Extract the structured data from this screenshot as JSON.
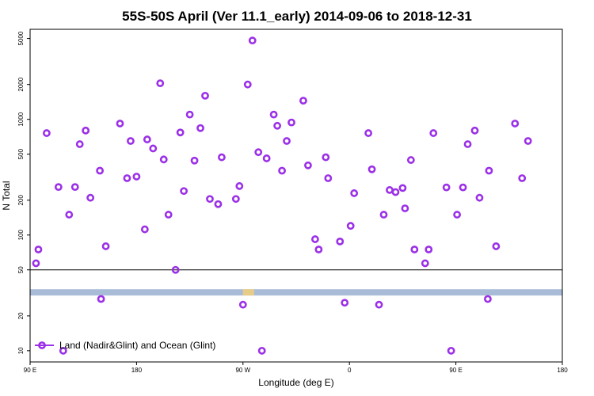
{
  "chart_data": {
    "type": "scatter",
    "title": "55S-50S April (Ver 11.1_early)   2014-09-06 to 2018-12-31",
    "xlabel": "Longitude (deg E)",
    "ylabel": "N Total",
    "y_scale": "log",
    "x_ticks": [
      {
        "value": 90,
        "label": "90 E"
      },
      {
        "value": 180,
        "label": "180"
      },
      {
        "value": 270,
        "label": "90 W"
      },
      {
        "value": 360,
        "label": "0"
      },
      {
        "value": 450,
        "label": "90 E"
      },
      {
        "value": 540,
        "label": "180"
      }
    ],
    "y_ticks": [
      10,
      20,
      50,
      100,
      200,
      500,
      1000,
      2000,
      5000
    ],
    "xlim": [
      90,
      540
    ],
    "ylim": [
      8,
      6000
    ],
    "grid": false,
    "legend_position": "bottom-left",
    "threshold_line": 50,
    "colors": {
      "series": "#9b30e8",
      "band": "#a8bcd8",
      "band_highlight": "#f2cf7a"
    },
    "band_range": [
      30,
      34
    ],
    "series": [
      {
        "name": "Land (Nadir&Glint) and Ocean (Glint)",
        "points": [
          [
            95,
            57
          ],
          [
            97,
            75
          ],
          [
            104,
            760
          ],
          [
            114,
            260
          ],
          [
            118,
            10
          ],
          [
            123,
            150
          ],
          [
            128,
            260
          ],
          [
            132,
            610
          ],
          [
            137,
            800
          ],
          [
            141,
            210
          ],
          [
            149,
            360
          ],
          [
            150,
            28
          ],
          [
            154,
            80
          ],
          [
            166,
            920
          ],
          [
            172,
            310
          ],
          [
            175,
            650
          ],
          [
            180,
            320
          ],
          [
            187,
            112
          ],
          [
            189,
            670
          ],
          [
            194,
            560
          ],
          [
            200,
            2050
          ],
          [
            203,
            450
          ],
          [
            207,
            150
          ],
          [
            213,
            50
          ],
          [
            217,
            770
          ],
          [
            220,
            240
          ],
          [
            225,
            1100
          ],
          [
            229,
            440
          ],
          [
            234,
            840
          ],
          [
            238,
            1600
          ],
          [
            242,
            205
          ],
          [
            249,
            185
          ],
          [
            252,
            470
          ],
          [
            264,
            205
          ],
          [
            267,
            265
          ],
          [
            270,
            25
          ],
          [
            274,
            2000
          ],
          [
            278,
            4800
          ],
          [
            283,
            520
          ],
          [
            286,
            10
          ],
          [
            290,
            460
          ],
          [
            296,
            1100
          ],
          [
            299,
            880
          ],
          [
            303,
            360
          ],
          [
            307,
            650
          ],
          [
            311,
            940
          ],
          [
            321,
            1450
          ],
          [
            325,
            400
          ],
          [
            331,
            92
          ],
          [
            334,
            75
          ],
          [
            340,
            470
          ],
          [
            342,
            310
          ],
          [
            352,
            88
          ],
          [
            356,
            26
          ],
          [
            361,
            120
          ],
          [
            364,
            230
          ],
          [
            376,
            760
          ],
          [
            379,
            370
          ],
          [
            385,
            25
          ],
          [
            389,
            150
          ],
          [
            394,
            245
          ],
          [
            399,
            235
          ],
          [
            405,
            255
          ],
          [
            407,
            170
          ],
          [
            412,
            445
          ],
          [
            415,
            75
          ],
          [
            424,
            57
          ],
          [
            427,
            75
          ],
          [
            431,
            760
          ],
          [
            442,
            258
          ],
          [
            446,
            10
          ],
          [
            451,
            150
          ],
          [
            456,
            258
          ],
          [
            460,
            610
          ],
          [
            466,
            800
          ],
          [
            470,
            210
          ],
          [
            478,
            360
          ],
          [
            477,
            28
          ],
          [
            484,
            80
          ],
          [
            500,
            920
          ],
          [
            506,
            310
          ],
          [
            511,
            650
          ]
        ]
      }
    ]
  }
}
